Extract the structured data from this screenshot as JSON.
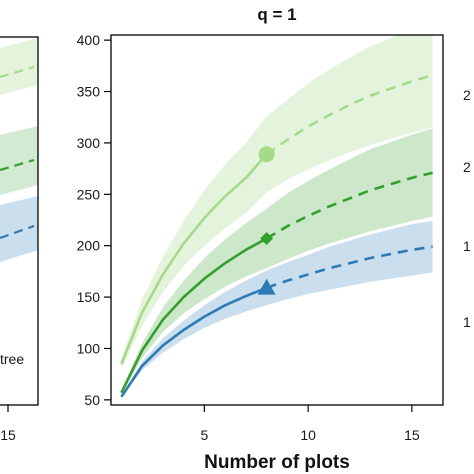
{
  "chart_data": {
    "type": "line",
    "title": "q = 1",
    "xlabel": "Number of plots",
    "ylabel": "",
    "xlim": [
      0.5,
      16.5
    ],
    "ylim": [
      45,
      405
    ],
    "x_ticks": [
      5,
      10,
      15
    ],
    "y_ticks": [
      50,
      100,
      150,
      200,
      250,
      300,
      350,
      400
    ],
    "grid": false,
    "reference_size": 8,
    "series": [
      {
        "color": "#a6d98a",
        "marker": "circle",
        "x": [
          1,
          2,
          3,
          4,
          5,
          6,
          7,
          8,
          9,
          10,
          11,
          12,
          13,
          14,
          15,
          16
        ],
        "y": [
          85,
          135,
          172,
          202,
          227,
          248,
          266,
          289,
          303,
          316,
          327,
          337,
          346,
          353,
          360,
          366
        ],
        "lower": [
          80,
          122,
          155,
          180,
          200,
          217,
          232,
          252,
          264,
          274,
          283,
          291,
          298,
          304,
          310,
          315
        ],
        "upper": [
          90,
          148,
          189,
          224,
          254,
          279,
          300,
          326,
          342,
          358,
          371,
          383,
          394,
          402,
          410,
          417
        ]
      },
      {
        "color": "#33a02c",
        "marker": "diamond",
        "x": [
          1,
          2,
          3,
          4,
          5,
          6,
          7,
          8,
          9,
          10,
          11,
          12,
          13,
          14,
          15,
          16
        ],
        "y": [
          57,
          98,
          128,
          150,
          168,
          183,
          196,
          207,
          219,
          229,
          238,
          246,
          254,
          260,
          266,
          271
        ],
        "lower": [
          55,
          91,
          116,
          134,
          148,
          160,
          170,
          178,
          187,
          195,
          202,
          208,
          214,
          219,
          224,
          228
        ],
        "upper": [
          59,
          105,
          140,
          166,
          188,
          206,
          222,
          236,
          251,
          263,
          274,
          284,
          294,
          301,
          308,
          314
        ]
      },
      {
        "color": "#2c7bb6",
        "marker": "triangle",
        "x": [
          1,
          2,
          3,
          4,
          5,
          6,
          7,
          8,
          9,
          10,
          11,
          12,
          13,
          14,
          15,
          16
        ],
        "y": [
          53,
          83,
          103,
          118,
          131,
          142,
          151,
          159,
          166,
          172,
          178,
          183,
          188,
          192,
          196,
          199
        ],
        "lower": [
          52,
          79,
          96,
          109,
          120,
          129,
          136,
          142,
          148,
          153,
          157,
          161,
          165,
          168,
          171,
          174
        ],
        "upper": [
          54,
          87,
          110,
          127,
          142,
          155,
          166,
          176,
          184,
          191,
          199,
          205,
          211,
          216,
          221,
          224
        ]
      }
    ],
    "left_panel": {
      "x_tick": "15",
      "label_fragment": "tree"
    },
    "right_panel": {
      "y_tick_fragments": [
        "2",
        "2",
        "1",
        "1"
      ]
    }
  }
}
